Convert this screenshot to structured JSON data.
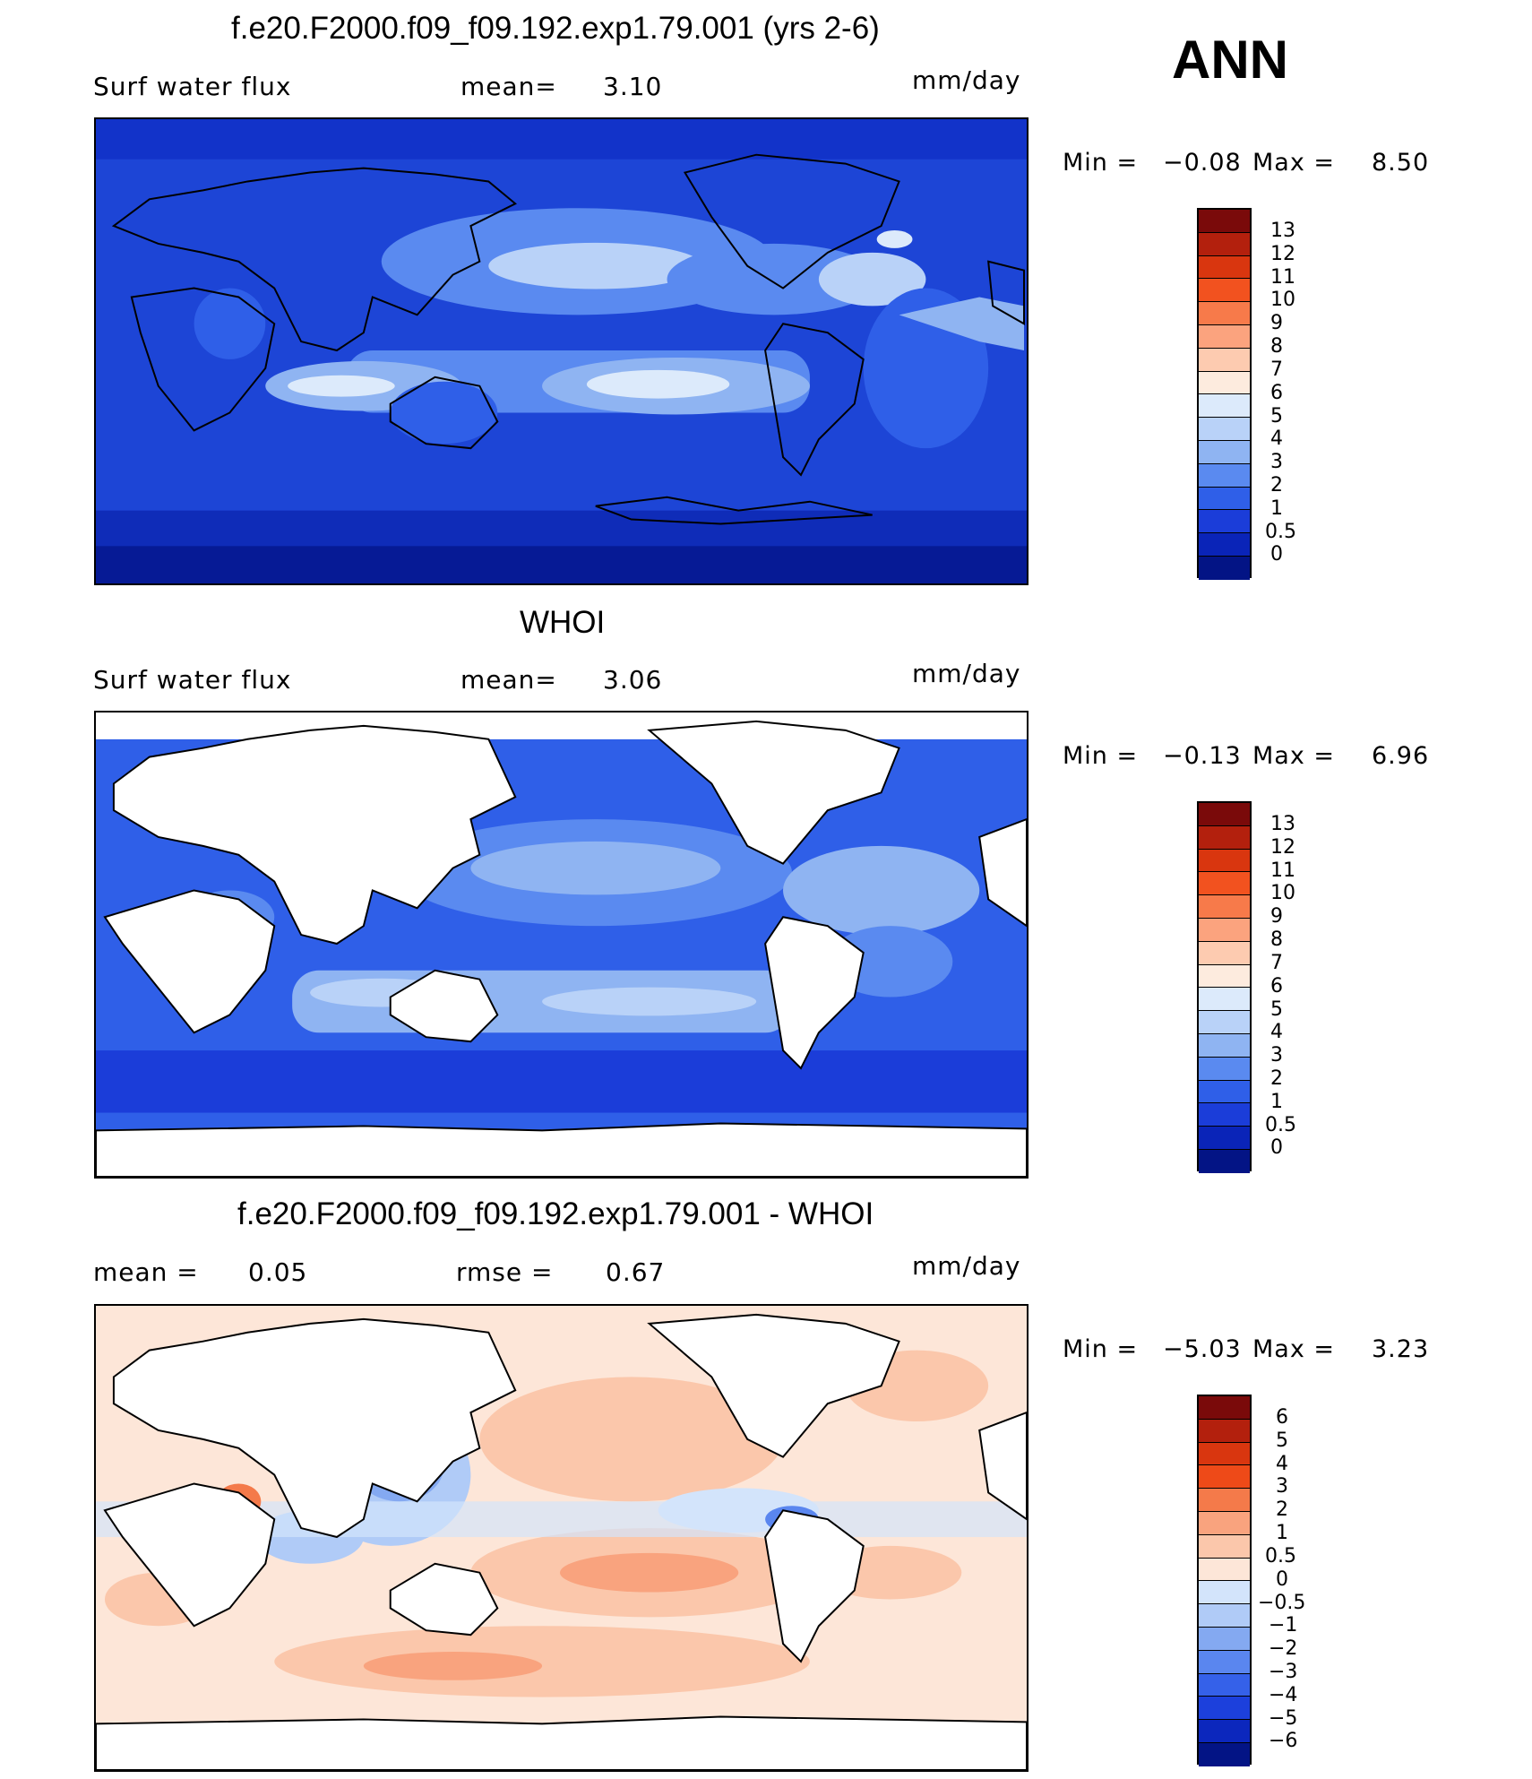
{
  "annotation": "ANN",
  "panels": [
    {
      "title": "f.e20.F2000.f09_f09.192.exp1.79.001 (yrs 2-6)",
      "left_label": "Surf water flux",
      "mean_label": "mean=",
      "mean_value": "3.10",
      "units": "mm/day",
      "min_label": "Min =",
      "min_value": "−0.08",
      "max_label": "Max =",
      "max_value": "8.50",
      "colorbar_labels": [
        "13",
        "12",
        "11",
        "10",
        "9",
        "8",
        "7",
        "6",
        "5",
        "4",
        "3",
        "2",
        "1",
        "0.5",
        "0"
      ]
    },
    {
      "title": "WHOI",
      "left_label": "Surf water flux",
      "mean_label": "mean=",
      "mean_value": "3.06",
      "units": "mm/day",
      "min_label": "Min =",
      "min_value": "−0.13",
      "max_label": "Max =",
      "max_value": "6.96",
      "colorbar_labels": [
        "13",
        "12",
        "11",
        "10",
        "9",
        "8",
        "7",
        "6",
        "5",
        "4",
        "3",
        "2",
        "1",
        "0.5",
        "0"
      ]
    },
    {
      "title": "f.e20.F2000.f09_f09.192.exp1.79.001 - WHOI",
      "left_label": "mean =",
      "left_value": "0.05",
      "mid_label": "rmse =",
      "mid_value": "0.67",
      "units": "mm/day",
      "min_label": "Min =",
      "min_value": "−5.03",
      "max_label": "Max =",
      "max_value": "3.23",
      "colorbar_labels": [
        "6",
        "5",
        "4",
        "3",
        "2",
        "1",
        "0.5",
        "0",
        "−0.5",
        "−1",
        "−2",
        "−3",
        "−4",
        "−5",
        "−6"
      ]
    }
  ],
  "colors": {
    "abs_scale": [
      "#7a0a0a",
      "#b3200d",
      "#d9360f",
      "#f2521f",
      "#f77a4a",
      "#fba37e",
      "#fdcbb0",
      "#fdebde",
      "#dceafb",
      "#b9d2f8",
      "#8fb4f2",
      "#5a8af0",
      "#2f5fe8",
      "#1b3dd9",
      "#0a24b8",
      "#031485"
    ],
    "diff_scale": [
      "#7a0a0a",
      "#b3200d",
      "#d9360f",
      "#ee4a18",
      "#f47a4a",
      "#f9a37e",
      "#fbc7ab",
      "#fde6d8",
      "#d3e4fb",
      "#b0cbf7",
      "#84a9f1",
      "#5a86ef",
      "#3561e9",
      "#1c40dc",
      "#0c27bd",
      "#031485"
    ]
  }
}
